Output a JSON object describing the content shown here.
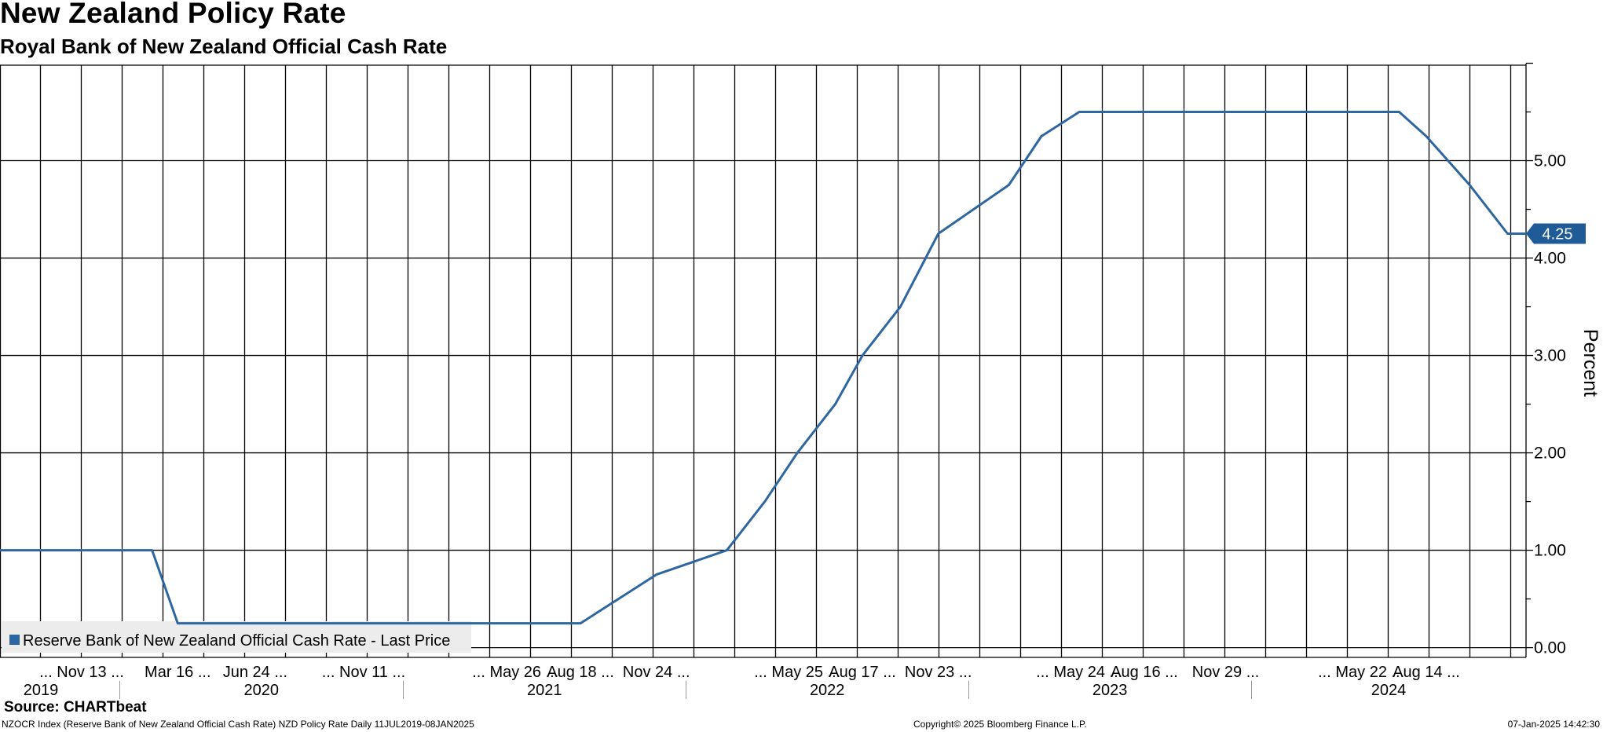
{
  "header": {
    "title": "New Zealand Policy Rate",
    "subtitle": "Royal Bank of New Zealand Official Cash Rate"
  },
  "footer": {
    "source": "Source: CHARTbeat",
    "description": "NZOCR Index (Reserve Bank of New Zealand Official Cash Rate) NZD Policy Rate  Daily 11JUL2019-08JAN2025",
    "copyright": "Copyright© 2025 Bloomberg Finance L.P.",
    "timestamp": "07-Jan-2025 14:42:30"
  },
  "colors": {
    "line": "#2e67a0",
    "badge": "#1f5b96",
    "grid": "#000000",
    "legend_bg": "#ececec"
  },
  "chart_data": {
    "type": "line",
    "ylabel": "Percent",
    "ylim": [
      -0.1,
      5.98
    ],
    "y_ticks": [
      0,
      1,
      2,
      3,
      4,
      5
    ],
    "y_tick_labels": [
      "0.00",
      "1.00",
      "2.00",
      "3.00",
      "4.00",
      "5.00"
    ],
    "grid": true,
    "legend_position": "bottom-left",
    "last_value_label": "4.25",
    "x_ticks": [
      {
        "date": "2019-11-13",
        "label": "... Nov 13 ..."
      },
      {
        "date": "2020-03-16",
        "label": "Mar 16 ..."
      },
      {
        "date": "2020-06-24",
        "label": "Jun 24 ..."
      },
      {
        "date": "2020-11-11",
        "label": "... Nov 11 ..."
      },
      {
        "date": "2021-05-26",
        "label": "... May 26 ..."
      },
      {
        "date": "2021-08-18",
        "label": "Aug 18 ..."
      },
      {
        "date": "2021-11-24",
        "label": "Nov 24 ..."
      },
      {
        "date": "2022-05-25",
        "label": "... May 25 ..."
      },
      {
        "date": "2022-08-17",
        "label": "Aug 17 ..."
      },
      {
        "date": "2022-11-23",
        "label": "Nov 23 ..."
      },
      {
        "date": "2023-05-24",
        "label": "... May 24 ..."
      },
      {
        "date": "2023-08-16",
        "label": "Aug 16 ..."
      },
      {
        "date": "2023-11-29",
        "label": "Nov 29 ..."
      },
      {
        "date": "2024-05-22",
        "label": "... May 22 ..."
      },
      {
        "date": "2024-08-14",
        "label": "Aug 14 ..."
      }
    ],
    "years": [
      "2019",
      "2020",
      "2021",
      "2022",
      "2023",
      "2024"
    ],
    "series": [
      {
        "name": "Reserve Bank of New Zealand Official Cash Rate - Last Price",
        "x": [
          "2019-07-11",
          "2019-08-07",
          "2019-09-25",
          "2019-11-13",
          "2020-02-12",
          "2020-03-16",
          "2020-05-13",
          "2020-06-24",
          "2020-08-12",
          "2020-09-23",
          "2020-11-11",
          "2021-02-24",
          "2021-04-14",
          "2021-05-26",
          "2021-07-14",
          "2021-08-18",
          "2021-10-06",
          "2021-11-24",
          "2022-02-23",
          "2022-04-13",
          "2022-05-25",
          "2022-07-13",
          "2022-08-17",
          "2022-10-05",
          "2022-11-23",
          "2023-02-22",
          "2023-04-05",
          "2023-05-24",
          "2023-07-12",
          "2023-08-16",
          "2023-10-04",
          "2023-11-29",
          "2024-02-28",
          "2024-04-10",
          "2024-05-22",
          "2024-07-10",
          "2024-08-14",
          "2024-10-09",
          "2024-11-27",
          "2025-01-08"
        ],
        "y": [
          1.0,
          1.0,
          1.0,
          1.0,
          1.0,
          0.25,
          0.25,
          0.25,
          0.25,
          0.25,
          0.25,
          0.25,
          0.25,
          0.25,
          0.25,
          0.25,
          0.5,
          0.75,
          1.0,
          1.5,
          2.0,
          2.5,
          3.0,
          3.5,
          4.25,
          4.75,
          5.25,
          5.5,
          5.5,
          5.5,
          5.5,
          5.5,
          5.5,
          5.5,
          5.5,
          5.5,
          5.25,
          4.75,
          4.25,
          4.25
        ]
      }
    ]
  }
}
